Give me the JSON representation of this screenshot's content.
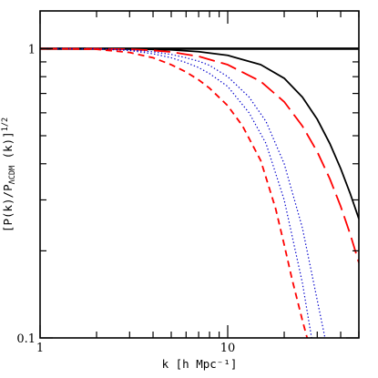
{
  "chart_data": {
    "type": "line",
    "xscale": "log",
    "yscale": "log",
    "xlim": [
      1,
      50
    ],
    "ylim": [
      0.1,
      1.35
    ],
    "grid": false,
    "legend": "none",
    "xlabel": "k [h Mpc⁻¹]",
    "ylabel_main": "[P(k)/P",
    "ylabel_sub": "ΛCDM",
    "ylabel_tail": " (k)]",
    "ylabel_sup": "1/2",
    "x_ticks": [
      {
        "value": 1,
        "label": "1"
      },
      {
        "value": 10,
        "label": "10"
      }
    ],
    "y_ticks": [
      {
        "value": 0.1,
        "label": "0.1"
      },
      {
        "value": 1,
        "label": "1"
      }
    ],
    "series": [
      {
        "color": "#000000",
        "style": "solid",
        "width": 2.6,
        "x": [
          1,
          40,
          50
        ],
        "y": [
          1,
          1,
          1
        ]
      },
      {
        "color": "#000000",
        "style": "solid",
        "width": 1.8,
        "x": [
          1,
          2,
          3,
          5,
          7,
          10,
          15,
          20,
          25,
          30,
          35,
          40,
          45,
          50
        ],
        "y": [
          1,
          1,
          0.998,
          0.99,
          0.976,
          0.948,
          0.88,
          0.79,
          0.68,
          0.57,
          0.47,
          0.385,
          0.315,
          0.258
        ]
      },
      {
        "color": "#ff0000",
        "style": "longdash",
        "width": 1.8,
        "x": [
          1,
          2,
          3,
          4,
          5,
          7,
          10,
          15,
          20,
          25,
          30,
          35,
          40,
          45,
          50
        ],
        "y": [
          1,
          0.999,
          0.995,
          0.986,
          0.974,
          0.94,
          0.88,
          0.77,
          0.655,
          0.54,
          0.44,
          0.355,
          0.285,
          0.228,
          0.182
        ]
      },
      {
        "color": "#0000cc",
        "style": "dotted",
        "width": 1.2,
        "x": [
          1,
          2,
          3,
          4,
          5,
          6,
          7,
          8,
          10,
          13,
          16,
          20,
          25,
          30,
          33
        ],
        "y": [
          1,
          0.999,
          0.99,
          0.975,
          0.955,
          0.93,
          0.905,
          0.875,
          0.8,
          0.68,
          0.56,
          0.4,
          0.24,
          0.135,
          0.1
        ]
      },
      {
        "color": "#0000cc",
        "style": "dotted",
        "width": 1.2,
        "x": [
          1,
          2,
          3,
          4,
          5,
          6,
          7,
          8,
          10,
          13,
          16,
          20,
          25,
          28
        ],
        "y": [
          1,
          0.998,
          0.985,
          0.96,
          0.93,
          0.895,
          0.86,
          0.82,
          0.74,
          0.6,
          0.47,
          0.3,
          0.155,
          0.1
        ]
      },
      {
        "color": "#ff0000",
        "style": "shortdash",
        "width": 1.8,
        "x": [
          1,
          2,
          3,
          4,
          5,
          6,
          7,
          8,
          10,
          12,
          15,
          18,
          20,
          22,
          25,
          26.5
        ],
        "y": [
          1,
          0.995,
          0.97,
          0.93,
          0.88,
          0.83,
          0.78,
          0.73,
          0.635,
          0.54,
          0.41,
          0.28,
          0.21,
          0.16,
          0.115,
          0.1
        ]
      }
    ]
  }
}
